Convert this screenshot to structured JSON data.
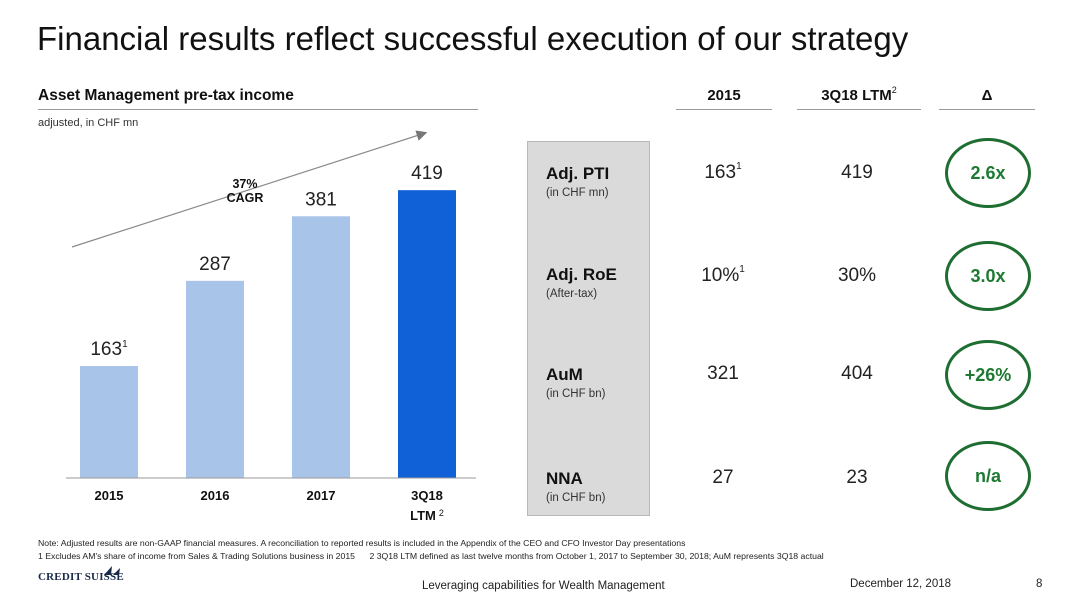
{
  "title": "Financial results reflect successful execution of our strategy",
  "chart_data": {
    "type": "bar",
    "title": "Asset Management pre-tax income",
    "subtitle": "adjusted, in CHF mn",
    "categories": [
      "2015",
      "2016",
      "2017",
      "3Q18 LTM"
    ],
    "category_superscripts": [
      "",
      "",
      "",
      "2"
    ],
    "values": [
      163,
      287,
      381,
      419
    ],
    "value_superscripts": [
      "1",
      "",
      "",
      ""
    ],
    "colors": [
      "#a9c4e9",
      "#a9c4e9",
      "#a9c4e9",
      "#1060d8"
    ],
    "ylim": [
      0,
      460
    ],
    "annotation": {
      "line1": "37%",
      "line2": "CAGR"
    }
  },
  "table": {
    "headers": {
      "col1": "2015",
      "col2": "3Q18 LTM",
      "col2_sup": "2",
      "delta": "Δ"
    },
    "rows": [
      {
        "name": "Adj. PTI",
        "unit": "(in CHF mn)",
        "v2015": "163",
        "v2015_sup": "1",
        "v3q18": "419",
        "delta": "2.6x"
      },
      {
        "name": "Adj. RoE",
        "unit": "(After-tax)",
        "v2015": "10%",
        "v2015_sup": "1",
        "v3q18": "30%",
        "delta": "3.0x"
      },
      {
        "name": "AuM",
        "unit": "(in CHF bn)",
        "v2015": "321",
        "v2015_sup": "",
        "v3q18": "404",
        "delta": "+26%"
      },
      {
        "name": "NNA",
        "unit": "(in CHF bn)",
        "v2015": "27",
        "v2015_sup": "",
        "v3q18": "23",
        "delta": "n/a"
      }
    ],
    "delta_color": "#1e7a32"
  },
  "notes": {
    "line1": "Note: Adjusted results are non-GAAP financial measures. A reconciliation to reported results is included in the Appendix of the CEO and CFO Investor Day presentations",
    "line2": "1 Excludes AM's share of income from Sales & Trading Solutions business in 2015      2 3Q18 LTM defined as last twelve months from October 1, 2017 to September 30, 2018; AuM represents 3Q18 actual"
  },
  "footer": {
    "logo": "CREDIT SUISSE",
    "center": "Leveraging capabilities for Wealth Management",
    "date": "December 12, 2018",
    "page": "8"
  }
}
